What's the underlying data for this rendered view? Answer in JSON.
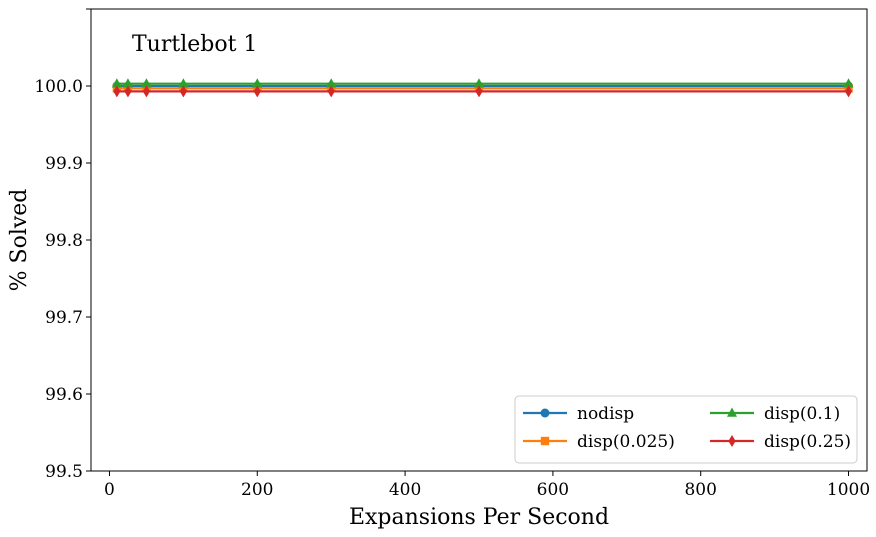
{
  "chart_data": {
    "type": "line",
    "title": "Turtlebot 1",
    "xlabel": "Expansions Per Second",
    "ylabel": "% Solved",
    "xlim": [
      -25,
      1025
    ],
    "ylim": [
      99.5,
      100.1
    ],
    "xticks": [
      0,
      200,
      400,
      600,
      800,
      1000
    ],
    "yticks": [
      99.5,
      99.6,
      99.7,
      99.8,
      99.9,
      100.0
    ],
    "ytick_labels": [
      "99.5",
      "99.6",
      "99.7",
      "99.8",
      "99.9",
      "100.0"
    ],
    "x": [
      10,
      25,
      50,
      100,
      200,
      300,
      500,
      1000
    ],
    "grid": false,
    "legend_position": "lower-right",
    "series": [
      {
        "name": "nodisp",
        "color": "#1f77b4",
        "marker": "circle",
        "values": [
          100.0,
          100.0,
          100.0,
          100.0,
          100.0,
          100.0,
          100.0,
          100.0
        ]
      },
      {
        "name": "disp(0.025)",
        "color": "#ff7f0e",
        "marker": "square",
        "values": [
          99.997,
          99.997,
          99.997,
          99.997,
          99.997,
          99.997,
          99.997,
          99.997
        ]
      },
      {
        "name": "disp(0.1)",
        "color": "#2ca02c",
        "marker": "triangle",
        "values": [
          100.003,
          100.003,
          100.003,
          100.003,
          100.003,
          100.003,
          100.003,
          100.003
        ]
      },
      {
        "name": "disp(0.25)",
        "color": "#d62728",
        "marker": "diamond",
        "values": [
          99.993,
          99.993,
          99.993,
          99.993,
          99.993,
          99.993,
          99.993,
          99.993
        ]
      }
    ]
  }
}
